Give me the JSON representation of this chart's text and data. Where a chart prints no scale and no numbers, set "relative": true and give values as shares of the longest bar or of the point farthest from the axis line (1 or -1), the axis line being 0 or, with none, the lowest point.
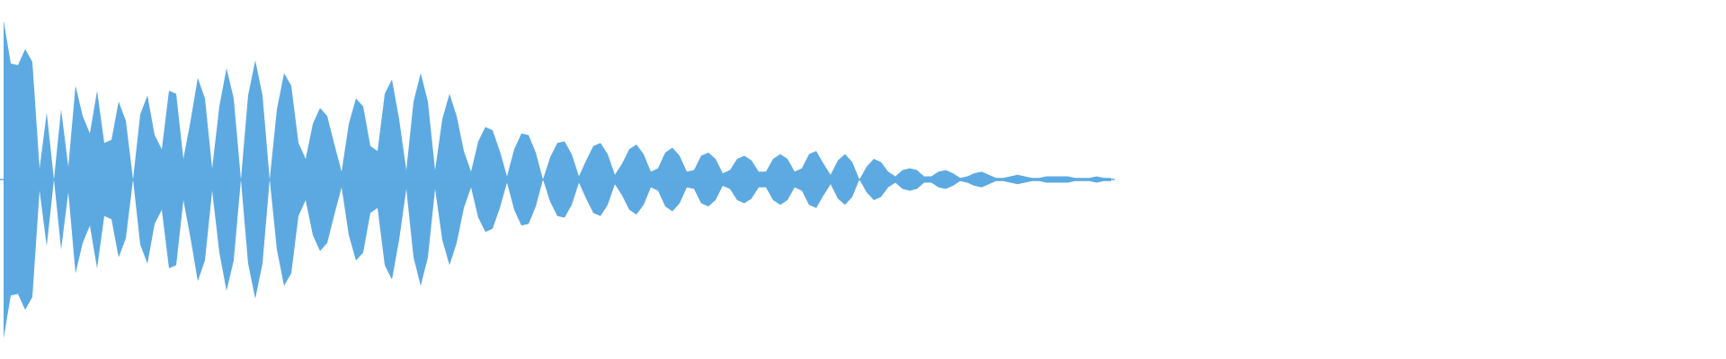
{
  "chart_data": {
    "type": "area",
    "relative": true,
    "categories": [
      null,
      null,
      null,
      null,
      null,
      null,
      null,
      null,
      null,
      null,
      null,
      null,
      null,
      null,
      null,
      null,
      null,
      null,
      null,
      null,
      null,
      null,
      null,
      null,
      null,
      null,
      null,
      null,
      null,
      null,
      null,
      null,
      null,
      null,
      null,
      null,
      null,
      null,
      null,
      null,
      null,
      null,
      null,
      null,
      null,
      null,
      null,
      null,
      null,
      null,
      null,
      null,
      null,
      null,
      null,
      null,
      null,
      null,
      null,
      null,
      null,
      null,
      null,
      null,
      null,
      null,
      null,
      null,
      null,
      null,
      null,
      null,
      null,
      null,
      null,
      null,
      null,
      null,
      null,
      null,
      null,
      null,
      null,
      null,
      null,
      null,
      null,
      null,
      null,
      null,
      null,
      null,
      null,
      null,
      null,
      null,
      null,
      null,
      null,
      null,
      null,
      null,
      null,
      null,
      null,
      null,
      null,
      null,
      null,
      null,
      null,
      null,
      null,
      null,
      null,
      null,
      null,
      null,
      null,
      null,
      null,
      null,
      null,
      null,
      null,
      null,
      null,
      null,
      null,
      null,
      null,
      null,
      null,
      null,
      null,
      null,
      null,
      null,
      null,
      null,
      null,
      null,
      null,
      null,
      null,
      null,
      null,
      null,
      null,
      null,
      null,
      null,
      null,
      null,
      null
    ],
    "series": [
      {
        "color": "#5daae2",
        "values": [
          1.0,
          0.73,
          0.72,
          0.82,
          0.74,
          0.07,
          0.42,
          0,
          0.44,
          0.08,
          0.59,
          0.4,
          0.29,
          0.56,
          0.23,
          0.25,
          0.49,
          0.37,
          0,
          0.41,
          0.53,
          0.28,
          0.19,
          0.56,
          0.54,
          0.13,
          0.37,
          0.64,
          0.51,
          0.07,
          0.46,
          0.7,
          0.51,
          0,
          0.53,
          0.75,
          0.53,
          0,
          0.44,
          0.67,
          0.59,
          0.23,
          0.13,
          0.35,
          0.45,
          0.4,
          0.22,
          0.05,
          0.35,
          0.51,
          0.46,
          0.21,
          0.18,
          0.54,
          0.63,
          0.38,
          0.06,
          0.49,
          0.67,
          0.49,
          0.06,
          0.38,
          0.54,
          0.4,
          0.18,
          0.05,
          0.24,
          0.33,
          0.31,
          0.18,
          0.02,
          0.19,
          0.29,
          0.28,
          0.17,
          0,
          0.14,
          0.23,
          0.24,
          0.16,
          0.02,
          0.12,
          0.21,
          0.23,
          0.16,
          0.03,
          0.1,
          0.19,
          0.22,
          0.16,
          0.05,
          0.07,
          0.17,
          0.2,
          0.15,
          0.05,
          0.06,
          0.15,
          0.17,
          0.13,
          0.04,
          0.06,
          0.13,
          0.15,
          0.12,
          0.05,
          0.05,
          0.13,
          0.16,
          0.13,
          0.05,
          0.07,
          0.16,
          0.18,
          0.1,
          0.03,
          0.12,
          0.16,
          0.11,
          0,
          0.08,
          0.13,
          0.11,
          0.05,
          0.02,
          0.06,
          0.07,
          0.06,
          0.02,
          0.02,
          0.05,
          0.06,
          0.04,
          0.01,
          0.02,
          0.04,
          0.05,
          0.03,
          0.01,
          0.01,
          0.02,
          0.03,
          0.02,
          0.01,
          0.01,
          0.02,
          0.02,
          0.02,
          0.02,
          0.01,
          0.01,
          0.01,
          0.02,
          0.01,
          0.01
        ]
      },
      {
        "color": "#5ca9e1",
        "values": [
          -1.0,
          -0.73,
          -0.72,
          -0.82,
          -0.74,
          -0.07,
          -0.42,
          0,
          -0.44,
          -0.08,
          -0.59,
          -0.4,
          -0.29,
          -0.56,
          -0.23,
          -0.25,
          -0.49,
          -0.37,
          0,
          -0.41,
          -0.53,
          -0.28,
          -0.19,
          -0.56,
          -0.54,
          -0.13,
          -0.37,
          -0.64,
          -0.51,
          -0.07,
          -0.46,
          -0.7,
          -0.51,
          0,
          -0.53,
          -0.75,
          -0.53,
          0,
          -0.44,
          -0.67,
          -0.59,
          -0.23,
          -0.13,
          -0.35,
          -0.45,
          -0.4,
          -0.22,
          -0.05,
          -0.35,
          -0.51,
          -0.46,
          -0.21,
          -0.18,
          -0.54,
          -0.63,
          -0.38,
          -0.06,
          -0.49,
          -0.67,
          -0.49,
          -0.06,
          -0.38,
          -0.54,
          -0.4,
          -0.18,
          -0.05,
          -0.24,
          -0.33,
          -0.31,
          -0.18,
          -0.02,
          -0.19,
          -0.29,
          -0.28,
          -0.17,
          0,
          -0.14,
          -0.23,
          -0.24,
          -0.16,
          -0.02,
          -0.12,
          -0.21,
          -0.23,
          -0.16,
          -0.03,
          -0.1,
          -0.19,
          -0.22,
          -0.16,
          -0.05,
          -0.07,
          -0.17,
          -0.2,
          -0.15,
          -0.05,
          -0.06,
          -0.15,
          -0.17,
          -0.13,
          -0.04,
          -0.06,
          -0.13,
          -0.15,
          -0.12,
          -0.05,
          -0.05,
          -0.13,
          -0.16,
          -0.13,
          -0.05,
          -0.07,
          -0.16,
          -0.18,
          -0.1,
          -0.03,
          -0.12,
          -0.16,
          -0.11,
          0,
          -0.08,
          -0.13,
          -0.11,
          -0.05,
          -0.02,
          -0.06,
          -0.07,
          -0.06,
          -0.02,
          -0.02,
          -0.05,
          -0.06,
          -0.04,
          -0.01,
          -0.02,
          -0.04,
          -0.05,
          -0.03,
          -0.01,
          -0.01,
          -0.02,
          -0.03,
          -0.02,
          -0.01,
          -0.01,
          -0.02,
          -0.02,
          -0.02,
          -0.02,
          -0.01,
          -0.01,
          -0.01,
          -0.02,
          -0.01,
          -0.01
        ]
      }
    ],
    "ref_lines": [
      {
        "axis": "y",
        "value": 0,
        "color": "#5daae2"
      }
    ]
  }
}
